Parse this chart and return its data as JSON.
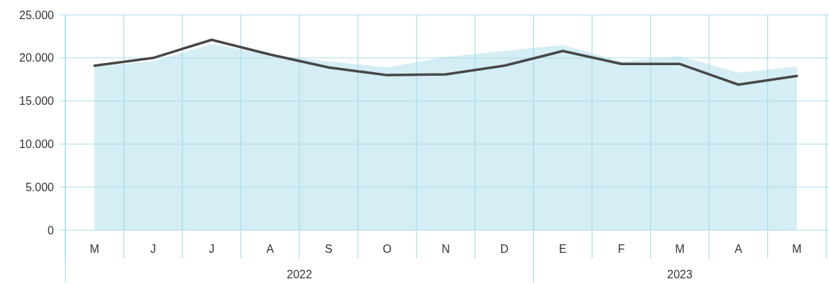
{
  "chart_data": {
    "type": "area",
    "categories": [
      "M",
      "J",
      "J",
      "A",
      "S",
      "O",
      "N",
      "D",
      "E",
      "F",
      "M",
      "A",
      "M"
    ],
    "series": [
      {
        "color": "#d5edf4",
        "values": [
          19000,
          19600,
          21600,
          20400,
          19600,
          18900,
          20100,
          20800,
          21500,
          19600,
          20200,
          18300,
          19000
        ]
      },
      {
        "type": "line",
        "color": "#474747",
        "values": [
          19100,
          20000,
          22100,
          20400,
          18900,
          18000,
          18100,
          19100,
          20800,
          19300,
          19300,
          16900,
          17900
        ]
      }
    ],
    "ylim": [
      0,
      25000
    ],
    "yticks": [
      0,
      {
        "value": 5000,
        "label": "5.000"
      },
      {
        "value": 10000,
        "label": "10.000"
      },
      {
        "value": 15000,
        "label": "15.000"
      },
      {
        "value": 20000,
        "label": "20.000"
      },
      {
        "value": 25000,
        "label": "25.000"
      }
    ],
    "grid": true,
    "marker": "none",
    "line_style": "solid",
    "annotations": [
      "2022",
      "2023"
    ]
  }
}
